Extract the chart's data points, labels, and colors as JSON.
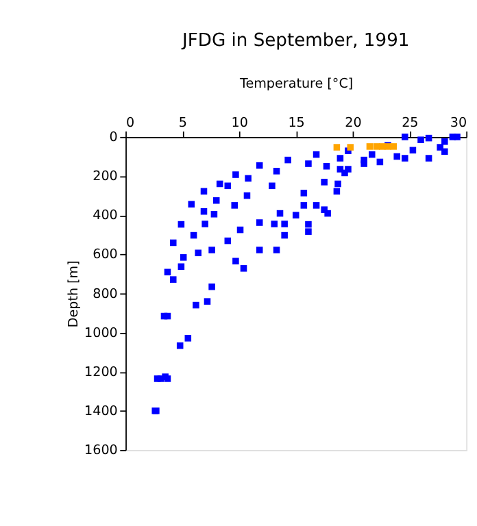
{
  "chart_data": {
    "type": "scatter",
    "title": "JFDG in September, 1991",
    "xlabel": "Temperature [°C]",
    "ylabel": "Depth [m]",
    "xlim": [
      0,
      30
    ],
    "xticks": [
      0,
      5,
      10,
      15,
      20,
      25,
      30
    ],
    "ylim": [
      1600,
      0
    ],
    "yticks": [
      0,
      200,
      400,
      600,
      800,
      1000,
      1200,
      1400,
      1600
    ],
    "grid": false,
    "legend": false,
    "marker": "square",
    "series": [
      {
        "color": "#0000ff",
        "x": [
          2.6,
          2.8,
          3.4,
          3.7,
          4.2,
          4.9,
          5.8,
          6.9,
          8.3,
          9.7,
          11.8,
          14.3,
          16.8,
          19.6,
          23.1,
          26.0,
          28.8,
          2.7,
          3.1,
          3.7,
          4.2,
          5.1,
          6.0,
          6.9,
          8.0,
          9.0,
          10.8,
          13.3,
          16.1,
          18.9,
          21.7,
          25.3,
          27.7,
          4.9,
          6.4,
          7.6,
          9.0,
          10.1,
          11.8,
          13.6,
          15.7,
          17.5,
          18.9,
          21.0,
          23.9,
          28.1,
          3.5,
          4.8,
          6.2,
          7.6,
          9.7,
          11.8,
          14.0,
          16.1,
          17.5,
          18.6,
          19.3,
          21.0,
          24.6,
          3.7,
          5.5,
          7.2,
          10.4,
          13.3,
          16.1,
          17.8,
          18.7,
          19.6,
          22.4,
          26.7,
          17.7,
          12.9,
          10.7,
          9.6,
          7.8,
          7.0,
          13.1,
          14.0,
          15.0,
          15.7,
          16.8,
          24.6,
          26.7,
          29.2,
          28.1
        ],
        "values": [
          1400,
          1236,
          916,
          691,
          541,
          447,
          344,
          278,
          240,
          193,
          146,
          118,
          90,
          71,
          43,
          15,
          0,
          1400,
          1236,
          916,
          729,
          616,
          503,
          381,
          325,
          250,
          212,
          175,
          137,
          109,
          90,
          68,
          53,
          663,
          593,
          578,
          531,
          475,
          438,
          391,
          287,
          231,
          165,
          118,
          100,
          75,
          1226,
          1067,
          860,
          766,
          635,
          578,
          503,
          447,
          372,
          278,
          184,
          137,
          109,
          1236,
          1029,
          841,
          672,
          578,
          484,
          391,
          240,
          165,
          128,
          109,
          150,
          250,
          300,
          350,
          395,
          445,
          445,
          445,
          400,
          350,
          350,
          0,
          6,
          0,
          24
        ]
      },
      {
        "color": "#ffa500",
        "x": [
          18.6,
          19.8,
          21.5,
          22.1,
          22.6,
          23.1,
          23.6
        ],
        "values": [
          53,
          53,
          49,
          49,
          49,
          49,
          49
        ]
      }
    ]
  }
}
